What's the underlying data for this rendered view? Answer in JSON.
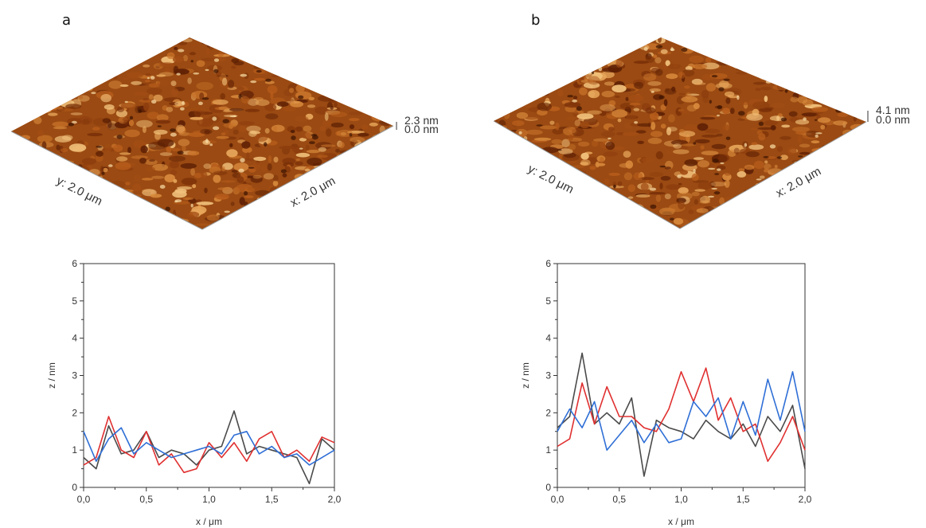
{
  "panels": [
    {
      "letter": "a",
      "afm": {
        "y_label": "y: 2.0 μm",
        "x_label": "x: 2.0 μm",
        "z_max_label": "2.3 nm",
        "z_min_label": "0.0 nm",
        "seed": 7
      },
      "profile_colors": [
        "#4a4a4a",
        "#e03030",
        "#2f6fd6"
      ]
    },
    {
      "letter": "b",
      "afm": {
        "y_label": "y: 2.0 μm",
        "x_label": "x: 2.0 μm",
        "z_max_label": "4.1 nm",
        "z_min_label": "0.0 nm",
        "seed": 19
      },
      "profile_colors": [
        "#4a4a4a",
        "#e03030",
        "#2f6fd6"
      ]
    }
  ],
  "chart_data": [
    {
      "type": "line",
      "xlabel": "x / μm",
      "ylabel": "z / nm",
      "xlim": [
        0,
        2
      ],
      "ylim": [
        0,
        6
      ],
      "xticks": [
        "0,0",
        "0,5",
        "1,0",
        "1,5",
        "2,0"
      ],
      "yticks": [
        "0",
        "1",
        "2",
        "3",
        "4",
        "5",
        "6"
      ],
      "x": [
        0.0,
        0.1,
        0.2,
        0.3,
        0.4,
        0.5,
        0.6,
        0.7,
        0.8,
        0.9,
        1.0,
        1.1,
        1.2,
        1.3,
        1.4,
        1.5,
        1.6,
        1.7,
        1.8,
        1.9,
        2.0
      ],
      "series": [
        {
          "color": "#4a4a4a",
          "values": [
            0.8,
            0.5,
            1.65,
            0.9,
            1.0,
            1.5,
            0.8,
            1.0,
            0.9,
            0.6,
            1.0,
            1.1,
            2.05,
            0.9,
            1.1,
            1.0,
            0.9,
            0.8,
            0.1,
            1.3,
            1.0
          ]
        },
        {
          "color": "#e03030",
          "values": [
            0.6,
            0.8,
            1.9,
            1.0,
            0.8,
            1.5,
            0.6,
            0.9,
            0.4,
            0.5,
            1.2,
            0.8,
            1.2,
            0.7,
            1.3,
            1.5,
            0.8,
            1.0,
            0.7,
            1.35,
            1.2
          ]
        },
        {
          "color": "#2f6fd6",
          "values": [
            1.5,
            0.7,
            1.3,
            1.6,
            0.9,
            1.2,
            1.0,
            0.8,
            0.9,
            1.0,
            1.1,
            0.9,
            1.4,
            1.5,
            0.9,
            1.1,
            0.8,
            0.9,
            0.6,
            0.8,
            1.0
          ]
        }
      ]
    },
    {
      "type": "line",
      "xlabel": "x / μm",
      "ylabel": "z / nm",
      "xlim": [
        0,
        2
      ],
      "ylim": [
        0,
        6
      ],
      "xticks": [
        "0,0",
        "0,5",
        "1,0",
        "1,5",
        "2,0"
      ],
      "yticks": [
        "0",
        "1",
        "2",
        "3",
        "4",
        "5",
        "6"
      ],
      "x": [
        0.0,
        0.1,
        0.2,
        0.3,
        0.4,
        0.5,
        0.6,
        0.7,
        0.8,
        0.9,
        1.0,
        1.1,
        1.2,
        1.3,
        1.4,
        1.5,
        1.6,
        1.7,
        1.8,
        1.9,
        2.0
      ],
      "series": [
        {
          "color": "#4a4a4a",
          "values": [
            1.6,
            1.9,
            3.6,
            1.7,
            2.0,
            1.7,
            2.4,
            0.3,
            1.8,
            1.6,
            1.5,
            1.3,
            1.8,
            1.5,
            1.3,
            1.7,
            1.1,
            1.9,
            1.5,
            2.2,
            0.5
          ]
        },
        {
          "color": "#e03030",
          "values": [
            1.1,
            1.3,
            2.8,
            1.7,
            2.7,
            1.9,
            1.9,
            1.6,
            1.5,
            2.1,
            3.1,
            2.3,
            3.2,
            1.8,
            2.4,
            1.5,
            1.7,
            0.7,
            1.2,
            1.9,
            1.0
          ]
        },
        {
          "color": "#2f6fd6",
          "values": [
            1.5,
            2.1,
            1.6,
            2.3,
            1.0,
            1.4,
            1.8,
            1.2,
            1.7,
            1.2,
            1.3,
            2.3,
            1.9,
            2.4,
            1.3,
            2.3,
            1.4,
            2.9,
            1.8,
            3.1,
            1.5
          ]
        }
      ]
    }
  ]
}
